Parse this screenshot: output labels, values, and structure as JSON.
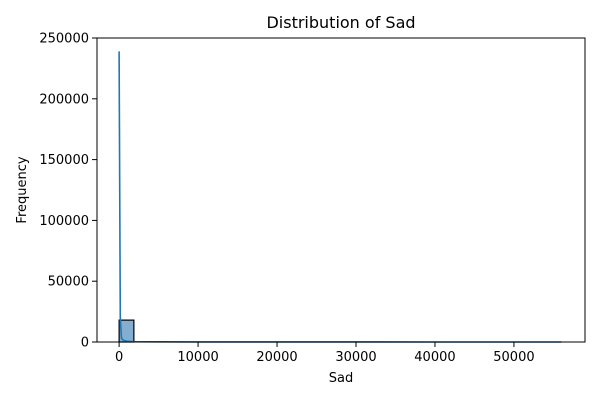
{
  "chart_data": {
    "type": "bar",
    "title": "Distribution of Sad",
    "xlabel": "Sad",
    "ylabel": "Frequency",
    "xlim": [
      -2800,
      59000
    ],
    "ylim": [
      0,
      250000
    ],
    "xticks": [
      0,
      10000,
      20000,
      30000,
      40000,
      50000
    ],
    "xtick_labels": [
      "0",
      "10000",
      "20000",
      "30000",
      "40000",
      "50000"
    ],
    "yticks": [
      0,
      50000,
      100000,
      150000,
      200000,
      250000
    ],
    "ytick_labels": [
      "0",
      "50000",
      "100000",
      "150000",
      "200000",
      "250000"
    ],
    "bins": [
      {
        "x0": 0,
        "x1": 1870,
        "count": 18000
      }
    ],
    "kde": {
      "x": [
        0,
        60,
        150,
        300,
        600,
        1000,
        2000,
        5000,
        10000,
        20000,
        30000,
        40000,
        50000,
        56000
      ],
      "y": [
        239000,
        150000,
        20000,
        3000,
        1200,
        600,
        300,
        150,
        80,
        40,
        20,
        10,
        5,
        0
      ]
    },
    "colors": {
      "bar_fill": "#83aed0",
      "bar_edge": "#000000",
      "kde_line": "#1f77b4"
    },
    "grid": false,
    "legend": "none"
  }
}
